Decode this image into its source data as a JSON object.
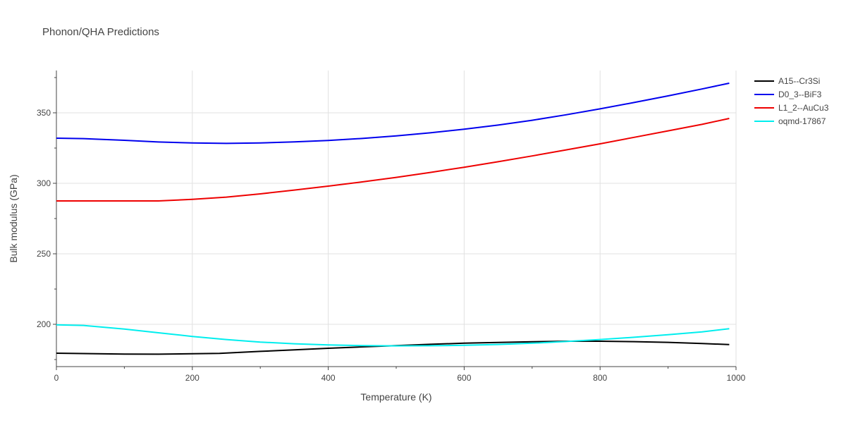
{
  "chart_data": {
    "type": "line",
    "title": "Phonon/QHA Predictions",
    "xlabel": "Temperature (K)",
    "ylabel": "Bulk modulus (GPa)",
    "xlim": [
      0,
      1000
    ],
    "ylim": [
      170,
      380
    ],
    "xticks": [
      0,
      200,
      400,
      600,
      800,
      1000
    ],
    "yticks": [
      200,
      250,
      300,
      350
    ],
    "grid": true,
    "legend_position": "top-right",
    "series": [
      {
        "name": "A15--Cr3Si",
        "color": "#000000",
        "x": [
          0,
          50,
          100,
          150,
          200,
          240,
          300,
          350,
          400,
          450,
          500,
          550,
          600,
          650,
          700,
          750,
          800,
          850,
          900,
          950,
          990
        ],
        "y": [
          179.5,
          179.2,
          178.9,
          178.8,
          179.1,
          179.4,
          180.8,
          181.9,
          183.0,
          184.0,
          184.9,
          185.8,
          186.6,
          187.1,
          187.6,
          188.0,
          188.0,
          187.7,
          187.2,
          186.4,
          185.6
        ]
      },
      {
        "name": "D0_3--BiF3",
        "color": "#0000ee",
        "x": [
          0,
          40,
          100,
          150,
          200,
          250,
          300,
          350,
          400,
          450,
          500,
          550,
          600,
          650,
          700,
          750,
          800,
          850,
          900,
          950,
          990
        ],
        "y": [
          332.0,
          331.7,
          330.5,
          329.3,
          328.6,
          328.3,
          328.6,
          329.4,
          330.4,
          331.8,
          333.6,
          335.8,
          338.4,
          341.3,
          344.7,
          348.6,
          352.8,
          357.3,
          362.0,
          366.9,
          371.0
        ]
      },
      {
        "name": "L1_2--AuCu3",
        "color": "#ee0000",
        "x": [
          0,
          50,
          100,
          150,
          200,
          250,
          300,
          350,
          400,
          450,
          500,
          550,
          600,
          650,
          700,
          750,
          800,
          850,
          900,
          950,
          990
        ],
        "y": [
          287.5,
          287.5,
          287.5,
          287.5,
          288.6,
          290.2,
          292.5,
          295.2,
          298.0,
          301.0,
          304.2,
          307.7,
          311.4,
          315.3,
          319.4,
          323.7,
          328.0,
          332.6,
          337.2,
          341.8,
          346.0
        ]
      },
      {
        "name": "oqmd-17867",
        "color": "#00eeee",
        "x": [
          0,
          40,
          100,
          150,
          200,
          250,
          300,
          350,
          400,
          450,
          500,
          550,
          600,
          650,
          700,
          750,
          800,
          850,
          900,
          950,
          990
        ],
        "y": [
          199.6,
          199.2,
          196.6,
          194.0,
          191.4,
          189.2,
          187.4,
          186.2,
          185.4,
          184.9,
          184.7,
          184.8,
          185.1,
          185.7,
          186.6,
          187.8,
          189.2,
          190.8,
          192.6,
          194.6,
          196.9
        ]
      }
    ]
  }
}
